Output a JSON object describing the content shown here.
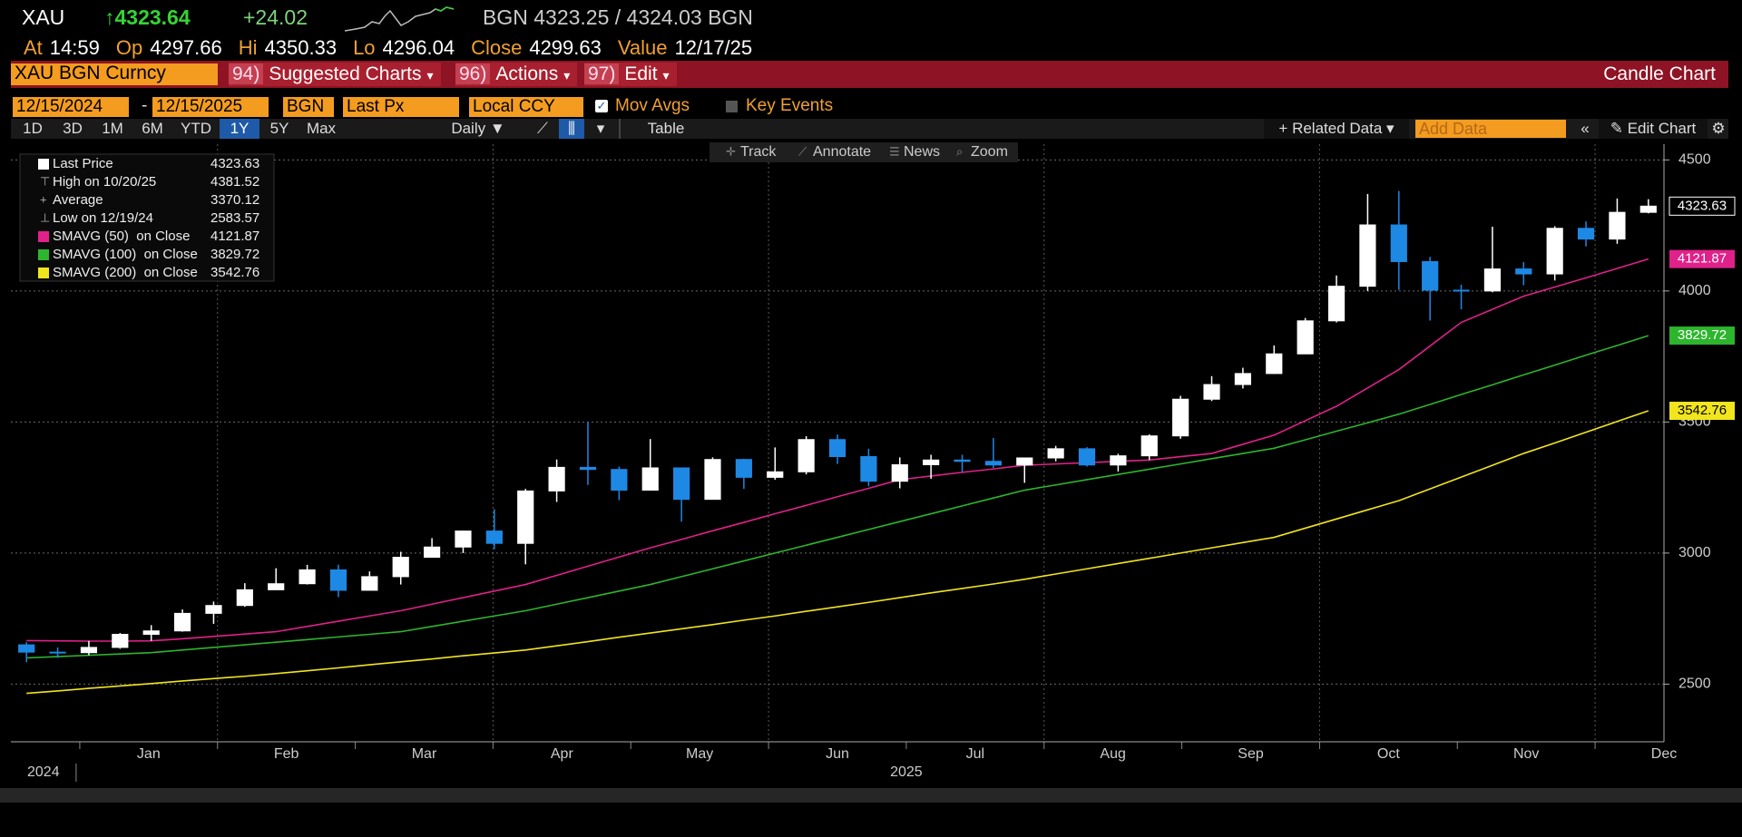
{
  "header": {
    "ticker": "XAU",
    "last": "↑4323.64",
    "change": "+24.02",
    "quote": "BGN 4323.25 / 4324.03 BGN",
    "stats": [
      {
        "label": "At",
        "value": "14:59"
      },
      {
        "label": "Op",
        "value": "4297.66"
      },
      {
        "label": "Hi",
        "value": "4350.33"
      },
      {
        "label": "Lo",
        "value": "4296.04"
      },
      {
        "label": "Close",
        "value": "4299.63"
      },
      {
        "label": "Value",
        "value": "12/17/25"
      }
    ]
  },
  "menu": {
    "security": "XAU BGN Curncy",
    "buttons": [
      {
        "num": "94)",
        "label": "Suggested Charts"
      },
      {
        "num": "96)",
        "label": "Actions"
      },
      {
        "num": "97)",
        "label": "Edit"
      }
    ],
    "chart_kind": "Candle Chart"
  },
  "settings": {
    "start": "12/15/2024",
    "separator": "-",
    "end": "12/15/2025",
    "source": "BGN",
    "field": "Last Px",
    "currency": "Local CCY",
    "mov_avgs": "Mov Avgs",
    "key_events": "Key Events"
  },
  "toolbar": {
    "periods": [
      "1D",
      "3D",
      "1M",
      "6M",
      "YTD",
      "1Y",
      "5Y",
      "Max"
    ],
    "frequency": "Daily",
    "table": "Table",
    "related": "Related Data",
    "add_data": "Add Data",
    "edit": "Edit Chart"
  },
  "chart_tools": [
    "Track",
    "Annotate",
    "News",
    "Zoom"
  ],
  "chart_data": {
    "type": "candlestick",
    "categories": [
      null,
      null,
      null,
      null,
      null,
      null,
      null,
      null,
      null,
      null,
      null,
      null,
      null,
      null,
      null,
      null,
      null,
      null,
      null,
      null,
      null,
      null,
      null,
      null,
      null,
      null,
      null,
      null,
      null,
      null,
      null,
      null,
      null,
      null,
      null,
      null,
      null,
      null,
      null,
      null,
      null,
      null,
      null,
      null,
      null,
      null,
      null,
      null,
      null,
      null,
      null,
      null,
      null
    ],
    "open": [
      2650,
      2622,
      2620,
      2640,
      2690,
      2703,
      2770,
      2800,
      2860,
      2883,
      2936,
      2858,
      2910,
      2984,
      3023,
      3084,
      3037,
      3237,
      3327,
      3319,
      3240,
      3325,
      3205,
      3357,
      3289,
      3310,
      3433,
      3368,
      3274,
      3337,
      3355,
      3350,
      3336,
      3363,
      3398,
      3336,
      3371,
      3447,
      3587,
      3643,
      3685,
      3760,
      3886,
      4018,
      4252,
      4112,
      4003,
      4000,
      4084,
      4065,
      4239,
      4198,
      4300
    ],
    "high": [
      2660,
      2640,
      2665,
      2695,
      2725,
      2785,
      2815,
      2885,
      2942,
      2955,
      2956,
      2930,
      3005,
      3057,
      3086,
      3167,
      3245,
      3357,
      3500,
      3330,
      3435,
      3325,
      3365,
      3360,
      3403,
      3446,
      3452,
      3398,
      3365,
      3375,
      3375,
      3439,
      3350,
      3409,
      3404,
      3379,
      3453,
      3600,
      3675,
      3707,
      3792,
      3897,
      4059,
      4370,
      4381.52,
      4130,
      4024,
      4245,
      4110,
      4247,
      4265,
      4353,
      4350
    ],
    "low": [
      2583.57,
      2600,
      2610,
      2635,
      2665,
      2700,
      2730,
      2795,
      2860,
      2880,
      2832,
      2860,
      2880,
      2990,
      3000,
      3015,
      2957,
      3195,
      3260,
      3202,
      3240,
      3120,
      3205,
      3245,
      3280,
      3300,
      3340,
      3255,
      3247,
      3283,
      3310,
      3325,
      3268,
      3350,
      3330,
      3311,
      3355,
      3436,
      3580,
      3628,
      3683,
      3760,
      3880,
      4000,
      4004,
      3887,
      3930,
      3995,
      4022,
      4040,
      4170,
      4180,
      4296
    ],
    "close": [
      2622,
      2620,
      2640,
      2690,
      2703,
      2770,
      2800,
      2860,
      2883,
      2936,
      2858,
      2910,
      2984,
      3023,
      3084,
      3037,
      3237,
      3327,
      3319,
      3240,
      3325,
      3205,
      3357,
      3289,
      3310,
      3433,
      3368,
      3274,
      3337,
      3355,
      3350,
      3336,
      3363,
      3398,
      3336,
      3371,
      3447,
      3587,
      3643,
      3685,
      3760,
      3886,
      4018,
      4252,
      4112,
      4003,
      4000,
      4084,
      4065,
      4239,
      4198,
      4300,
      4323.63
    ],
    "up_color": "#ffffff",
    "down_color": "#1e88e5",
    "series": [
      {
        "name": "SMAVG (50)  on Close",
        "color": "#e0218a",
        "values": [
          2666,
          2665,
          2664,
          2664,
          2665,
          2673,
          2682,
          2691,
          2700,
          2720,
          2740,
          2760,
          2780,
          2805,
          2830,
          2855,
          2880,
          2915,
          2950,
          2985,
          3020,
          3052,
          3085,
          3117,
          3150,
          3182,
          3215,
          3247,
          3280,
          3294,
          3308,
          3321,
          3335,
          3340,
          3345,
          3350,
          3355,
          3368,
          3380,
          3415,
          3450,
          3505,
          3560,
          3630,
          3700,
          3790,
          3880,
          3930,
          3980,
          4015,
          4050,
          4086,
          4121.87
        ]
      },
      {
        "name": "SMAVG (100)  on Close",
        "color": "#2db52d",
        "values": [
          2600,
          2605,
          2610,
          2615,
          2620,
          2630,
          2640,
          2650,
          2660,
          2670,
          2680,
          2690,
          2700,
          2720,
          2740,
          2760,
          2780,
          2805,
          2830,
          2855,
          2880,
          2910,
          2940,
          2970,
          3000,
          3030,
          3060,
          3090,
          3120,
          3150,
          3180,
          3210,
          3240,
          3260,
          3280,
          3300,
          3320,
          3340,
          3360,
          3380,
          3400,
          3432,
          3465,
          3497,
          3530,
          3567,
          3605,
          3642,
          3680,
          3717,
          3755,
          3792,
          3829.72
        ]
      },
      {
        "name": "SMAVG (200)  on Close",
        "color": "#f1e51d",
        "values": [
          2465,
          2474,
          2484,
          2493,
          2502,
          2512,
          2521,
          2530,
          2540,
          2551,
          2562,
          2574,
          2585,
          2596,
          2608,
          2619,
          2630,
          2646,
          2662,
          2679,
          2695,
          2711,
          2727,
          2744,
          2760,
          2778,
          2795,
          2812,
          2830,
          2848,
          2865,
          2882,
          2900,
          2920,
          2940,
          2960,
          2980,
          3000,
          3020,
          3040,
          3060,
          3095,
          3130,
          3165,
          3200,
          3245,
          3290,
          3335,
          3380,
          3420,
          3461,
          3502,
          3542.76
        ]
      }
    ],
    "legend": [
      {
        "label": "Last Price",
        "value": 4323.63
      },
      {
        "label": "High on 10/20/25",
        "value": 4381.52
      },
      {
        "label": "Average",
        "value": 3370.12
      },
      {
        "label": "Low on 12/19/24",
        "value": 2583.57
      }
    ],
    "x_labels": [
      "Jan",
      "Feb",
      "Mar",
      "Apr",
      "May",
      "Jun",
      "Jul",
      "Aug",
      "Sep",
      "Oct",
      "Nov",
      "Dec"
    ],
    "year_labels": [
      "2024",
      "2025"
    ],
    "ylim": [
      2280,
      4560
    ],
    "yticks": [
      2500,
      3000,
      3500,
      4000,
      4500
    ],
    "grid": true
  }
}
